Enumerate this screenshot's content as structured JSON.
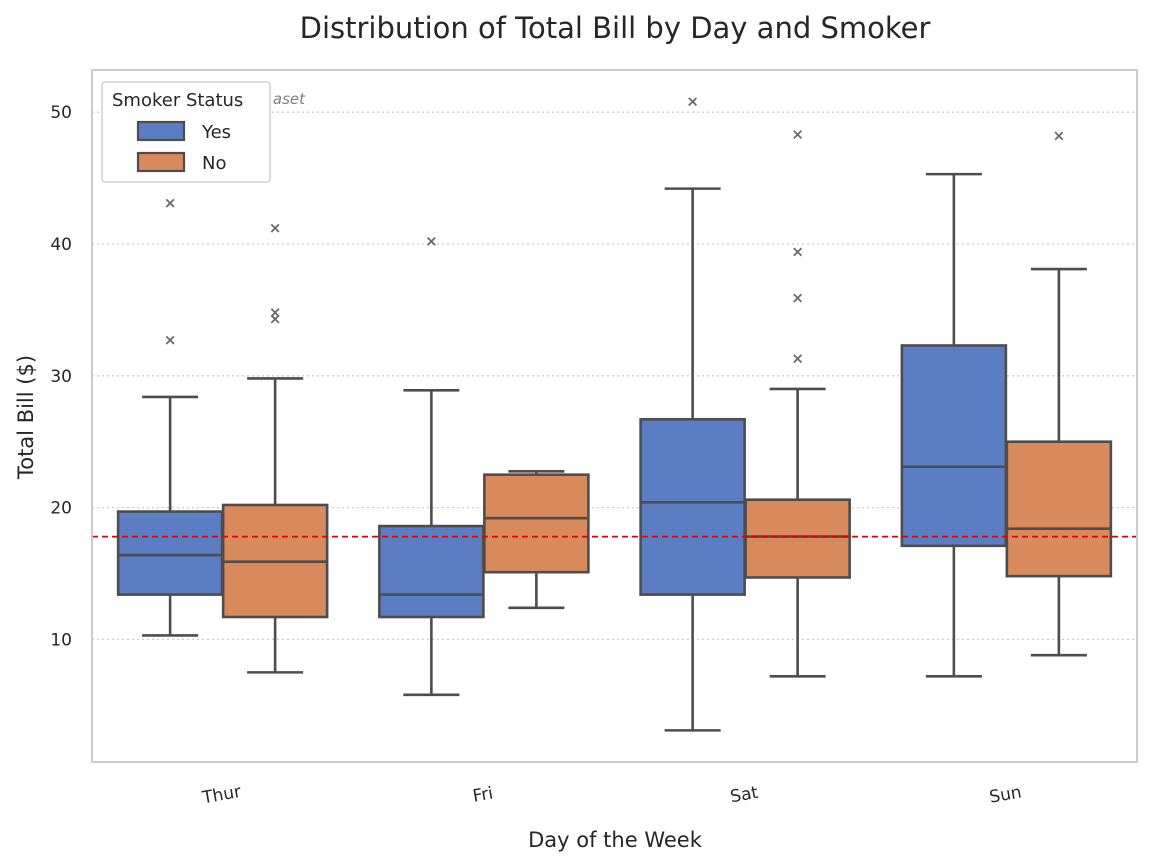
{
  "chart_data": {
    "type": "box",
    "title": "Distribution of Total Bill by Day and Smoker",
    "xlabel": "Day of the Week",
    "ylabel": "Total Bill ($)",
    "categories": [
      "Thur",
      "Fri",
      "Sat",
      "Sun"
    ],
    "ylim": [
      0.7,
      53.2
    ],
    "yticks": [
      10,
      20,
      30,
      40,
      50
    ],
    "grid": "y-dotted",
    "reference_line": {
      "value": 17.8,
      "color": "#e50000",
      "style": "dashed"
    },
    "legend": {
      "title": "Smoker Status",
      "position": "top-left"
    },
    "annotation": "aset",
    "series": [
      {
        "name": "Yes",
        "color": "#5a7dc3",
        "boxes": [
          {
            "whisker_low": 10.3,
            "q1": 13.4,
            "median": 16.4,
            "q3": 19.7,
            "whisker_high": 28.4,
            "outliers": [
              32.7,
              43.1
            ]
          },
          {
            "whisker_low": 5.8,
            "q1": 11.7,
            "median": 13.4,
            "q3": 18.6,
            "whisker_high": 28.9,
            "outliers": [
              40.2
            ]
          },
          {
            "whisker_low": 3.1,
            "q1": 13.4,
            "median": 20.4,
            "q3": 26.7,
            "whisker_high": 44.2,
            "outliers": [
              50.8
            ]
          },
          {
            "whisker_low": 7.2,
            "q1": 17.1,
            "median": 23.1,
            "q3": 32.3,
            "whisker_high": 45.3,
            "outliers": []
          }
        ]
      },
      {
        "name": "No",
        "color": "#d98a5c",
        "boxes": [
          {
            "whisker_low": 7.5,
            "q1": 11.7,
            "median": 15.9,
            "q3": 20.2,
            "whisker_high": 29.8,
            "outliers": [
              34.3,
              34.8,
              41.2
            ]
          },
          {
            "whisker_low": 12.4,
            "q1": 15.1,
            "median": 19.2,
            "q3": 22.5,
            "whisker_high": 22.75,
            "outliers": []
          },
          {
            "whisker_low": 7.2,
            "q1": 14.7,
            "median": 17.8,
            "q3": 20.6,
            "whisker_high": 29.0,
            "outliers": [
              31.3,
              35.9,
              39.4,
              48.3
            ]
          },
          {
            "whisker_low": 8.8,
            "q1": 14.8,
            "median": 18.4,
            "q3": 25.0,
            "whisker_high": 38.1,
            "outliers": [
              48.2
            ]
          }
        ]
      }
    ]
  }
}
